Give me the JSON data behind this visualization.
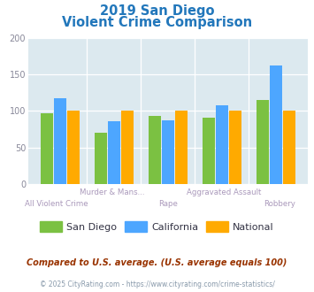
{
  "title_line1": "2019 San Diego",
  "title_line2": "Violent Crime Comparison",
  "categories": [
    "All Violent Crime",
    "Murder & Mans...",
    "Rape",
    "Aggravated Assault",
    "Robbery"
  ],
  "san_diego": [
    97,
    70,
    93,
    91,
    115
  ],
  "california": [
    118,
    86,
    87,
    108,
    162
  ],
  "national": [
    100,
    100,
    100,
    100,
    100
  ],
  "color_sd": "#7bc142",
  "color_ca": "#4da6ff",
  "color_nat": "#ffaa00",
  "ylim": [
    0,
    200
  ],
  "yticks": [
    0,
    50,
    100,
    150,
    200
  ],
  "legend_labels": [
    "San Diego",
    "California",
    "National"
  ],
  "footnote1": "Compared to U.S. average. (U.S. average equals 100)",
  "footnote2": "© 2025 CityRating.com - https://www.cityrating.com/crime-statistics/",
  "plot_bg": "#dce9ef",
  "title_color": "#2277bb",
  "cat_label_color_top": "#aa99bb",
  "cat_label_color_bot": "#aa99bb",
  "footnote1_color": "#993300",
  "footnote2_color": "#8899aa",
  "footnote2_link_color": "#3399cc"
}
